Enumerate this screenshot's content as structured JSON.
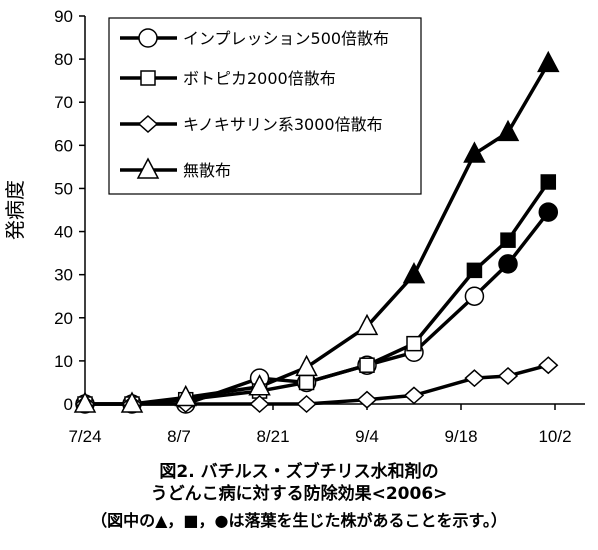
{
  "chart_data": {
    "type": "line",
    "ylabel": "発病度",
    "xlabel": "",
    "ylim": [
      0,
      90
    ],
    "yticks": [
      "0",
      "10",
      "20",
      "30",
      "40",
      "50",
      "60",
      "70",
      "80",
      "90"
    ],
    "xticks": [
      "7/24",
      "8/7",
      "8/21",
      "9/4",
      "9/18",
      "10/2"
    ],
    "x_dates": [
      "7/24",
      "7/31",
      "8/8",
      "8/19",
      "8/26",
      "9/4",
      "9/11",
      "9/20",
      "9/25",
      "10/1"
    ],
    "series": [
      {
        "name": "インプレッション500倍散布",
        "marker": "circle",
        "values": [
          0,
          0,
          0,
          6,
          5,
          9,
          12,
          25,
          32.5,
          44.5
        ],
        "filled": [
          false,
          false,
          false,
          false,
          false,
          false,
          false,
          false,
          true,
          true
        ]
      },
      {
        "name": "ボトピカ2000倍散布",
        "marker": "square",
        "values": [
          0,
          0,
          1,
          3,
          5,
          9,
          14,
          31,
          38,
          51.5
        ],
        "filled": [
          false,
          false,
          false,
          false,
          false,
          false,
          false,
          true,
          true,
          true
        ]
      },
      {
        "name": "キノキサリン系3000倍散布",
        "marker": "diamond",
        "values": [
          0,
          0,
          0,
          0,
          0,
          1,
          2,
          6,
          6.5,
          9
        ],
        "filled": [
          false,
          false,
          false,
          false,
          false,
          false,
          false,
          false,
          false,
          false
        ]
      },
      {
        "name": "無散布",
        "marker": "triangle",
        "values": [
          0,
          0,
          1.5,
          4,
          8.5,
          18,
          30,
          58,
          63,
          79
        ],
        "filled": [
          false,
          false,
          false,
          false,
          false,
          false,
          true,
          true,
          true,
          true
        ]
      }
    ],
    "legend_position": "top-left"
  },
  "caption": {
    "line1": "図2. バチルス・ズブチリス水和剤の",
    "line2": "うどんこ病に対する防除効果<2006>",
    "line3": "（図中の▲，■，●は落葉を生じた株があることを示す。）"
  }
}
